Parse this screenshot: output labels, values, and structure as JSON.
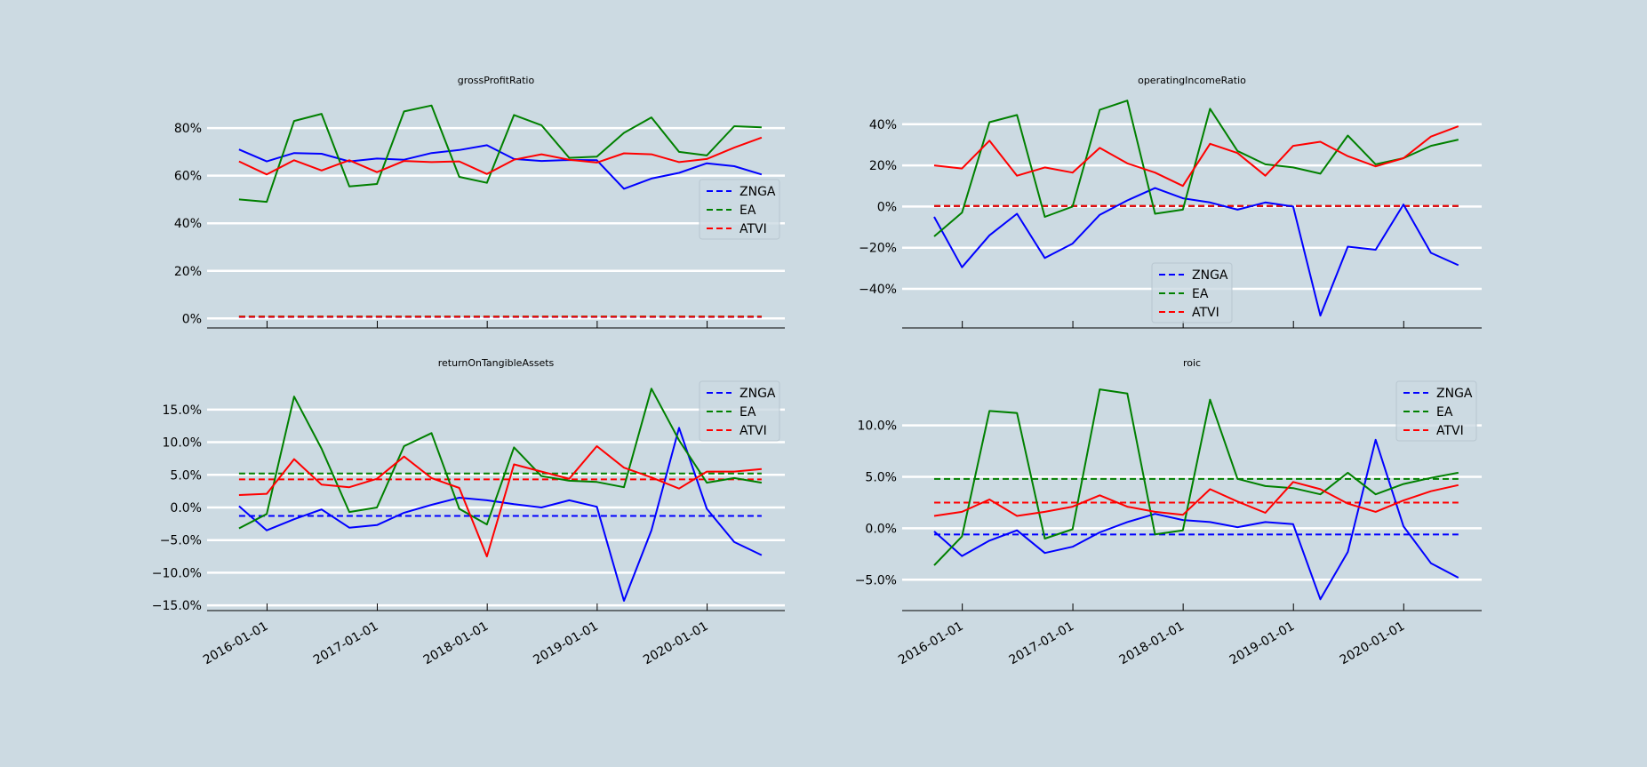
{
  "chart_data": [
    {
      "type": "line",
      "title": "grossProfitRatio",
      "y_format": "pct0",
      "ylim": [
        -0.04,
        0.92
      ],
      "yticks": [
        0,
        0.2,
        0.4,
        0.6,
        0.8
      ],
      "ytick_labels": [
        "0%",
        "20%",
        "40%",
        "60%",
        "80%"
      ],
      "xticks": [
        "2016-01-01",
        "2017-01-01",
        "2018-01-01",
        "2019-01-01",
        "2020-01-01"
      ],
      "xtick_labels_shown": false,
      "grid": "horizontal",
      "legend_position": "center-right",
      "x": [
        "2015-09-30",
        "2015-12-31",
        "2016-03-31",
        "2016-06-30",
        "2016-09-30",
        "2016-12-31",
        "2017-03-31",
        "2017-06-30",
        "2017-09-30",
        "2017-12-31",
        "2018-03-31",
        "2018-06-30",
        "2018-09-30",
        "2018-12-31",
        "2019-03-31",
        "2019-06-30",
        "2019-09-30",
        "2019-12-31",
        "2020-03-31",
        "2020-06-30"
      ],
      "series": [
        {
          "name": "ZNGA",
          "color": "#0000ff",
          "values": [
            0.71,
            0.66,
            0.695,
            0.692,
            0.66,
            0.672,
            0.667,
            0.695,
            0.708,
            0.728,
            0.67,
            0.662,
            0.666,
            0.665,
            0.545,
            0.588,
            0.612,
            0.652,
            0.64,
            0.605
          ],
          "mean": 0.006
        },
        {
          "name": "EA",
          "color": "#008000",
          "values": [
            0.5,
            0.49,
            0.83,
            0.86,
            0.555,
            0.565,
            0.87,
            0.895,
            0.595,
            0.57,
            0.855,
            0.812,
            0.675,
            0.68,
            0.78,
            0.845,
            0.7,
            0.685,
            0.808,
            0.803
          ],
          "mean": 0.008
        },
        {
          "name": "ATVI",
          "color": "#ff0000",
          "values": [
            0.66,
            0.605,
            0.665,
            0.622,
            0.665,
            0.615,
            0.662,
            0.657,
            0.66,
            0.607,
            0.667,
            0.69,
            0.667,
            0.655,
            0.694,
            0.69,
            0.657,
            0.67,
            0.718,
            0.76
          ],
          "mean": 0.007
        }
      ]
    },
    {
      "type": "line",
      "title": "operatingIncomeRatio",
      "y_format": "pct0",
      "ylim": [
        -0.59,
        0.52
      ],
      "yticks": [
        -0.4,
        -0.2,
        0,
        0.2,
        0.4
      ],
      "ytick_labels": [
        "−40%",
        "−20%",
        "0%",
        "20%",
        "40%"
      ],
      "xticks": [
        "2016-01-01",
        "2017-01-01",
        "2018-01-01",
        "2019-01-01",
        "2020-01-01"
      ],
      "xtick_labels_shown": false,
      "grid": "horizontal",
      "legend_position": "lower-center",
      "x": [
        "2015-09-30",
        "2015-12-31",
        "2016-03-31",
        "2016-06-30",
        "2016-09-30",
        "2016-12-31",
        "2017-03-31",
        "2017-06-30",
        "2017-09-30",
        "2017-12-31",
        "2018-03-31",
        "2018-06-30",
        "2018-09-30",
        "2018-12-31",
        "2019-03-31",
        "2019-06-30",
        "2019-09-30",
        "2019-12-31",
        "2020-03-31",
        "2020-06-30"
      ],
      "series": [
        {
          "name": "ZNGA",
          "color": "#0000ff",
          "values": [
            -0.05,
            -0.295,
            -0.14,
            -0.035,
            -0.25,
            -0.18,
            -0.04,
            0.03,
            0.09,
            0.04,
            0.02,
            -0.015,
            0.02,
            0.0,
            -0.53,
            -0.195,
            -0.21,
            0.01,
            -0.225,
            -0.285
          ],
          "mean": 0.002
        },
        {
          "name": "EA",
          "color": "#008000",
          "values": [
            -0.145,
            -0.03,
            0.41,
            0.445,
            -0.05,
            0.0,
            0.47,
            0.515,
            -0.035,
            -0.015,
            0.475,
            0.27,
            0.205,
            0.19,
            0.16,
            0.345,
            0.205,
            0.235,
            0.295,
            0.325
          ],
          "mean": 0.003
        },
        {
          "name": "ATVI",
          "color": "#ff0000",
          "values": [
            0.2,
            0.185,
            0.32,
            0.15,
            0.19,
            0.165,
            0.285,
            0.21,
            0.165,
            0.1,
            0.305,
            0.26,
            0.15,
            0.295,
            0.315,
            0.245,
            0.195,
            0.235,
            0.34,
            0.39
          ],
          "mean": 0.003
        }
      ]
    },
    {
      "type": "line",
      "title": "returnOnTangibleAssets",
      "y_format": "pct1",
      "ylim": [
        -0.158,
        0.192
      ],
      "yticks": [
        -0.15,
        -0.1,
        -0.05,
        0,
        0.05,
        0.1,
        0.15
      ],
      "ytick_labels": [
        "−15.0%",
        "−10.0%",
        "−5.0%",
        "0.0%",
        "5.0%",
        "10.0%",
        "15.0%"
      ],
      "xticks": [
        "2016-01-01",
        "2017-01-01",
        "2018-01-01",
        "2019-01-01",
        "2020-01-01"
      ],
      "xtick_labels": [
        "2016-01-01",
        "2017-01-01",
        "2018-01-01",
        "2019-01-01",
        "2020-01-01"
      ],
      "xtick_labels_shown": true,
      "grid": "horizontal",
      "legend_position": "upper-right",
      "x": [
        "2015-09-30",
        "2015-12-31",
        "2016-03-31",
        "2016-06-30",
        "2016-09-30",
        "2016-12-31",
        "2017-03-31",
        "2017-06-30",
        "2017-09-30",
        "2017-12-31",
        "2018-03-31",
        "2018-06-30",
        "2018-09-30",
        "2018-12-31",
        "2019-03-31",
        "2019-06-30",
        "2019-09-30",
        "2019-12-31",
        "2020-03-31",
        "2020-06-30"
      ],
      "series": [
        {
          "name": "ZNGA",
          "color": "#0000ff",
          "values": [
            0.002,
            -0.035,
            -0.018,
            -0.003,
            -0.031,
            -0.027,
            -0.008,
            0.004,
            0.015,
            0.011,
            0.005,
            0.0,
            0.011,
            0.001,
            -0.143,
            -0.035,
            0.122,
            -0.002,
            -0.053,
            -0.073
          ],
          "mean": -0.013
        },
        {
          "name": "EA",
          "color": "#008000",
          "values": [
            -0.032,
            -0.01,
            0.17,
            0.09,
            -0.007,
            0.0,
            0.094,
            0.114,
            -0.002,
            -0.026,
            0.092,
            0.048,
            0.041,
            0.039,
            0.031,
            0.182,
            0.103,
            0.038,
            0.045,
            0.038
          ],
          "mean": 0.052
        },
        {
          "name": "ATVI",
          "color": "#ff0000",
          "values": [
            0.019,
            0.021,
            0.074,
            0.035,
            0.031,
            0.044,
            0.078,
            0.045,
            0.03,
            -0.075,
            0.066,
            0.055,
            0.044,
            0.094,
            0.061,
            0.046,
            0.029,
            0.055,
            0.055,
            0.059
          ],
          "mean": 0.043
        }
      ]
    },
    {
      "type": "line",
      "title": "roic",
      "y_format": "pct1",
      "ylim": [
        -0.08,
        0.142
      ],
      "yticks": [
        -0.05,
        0,
        0.05,
        0.1
      ],
      "ytick_labels": [
        "−5.0%",
        "0.0%",
        "5.0%",
        "10.0%"
      ],
      "xticks": [
        "2016-01-01",
        "2017-01-01",
        "2018-01-01",
        "2019-01-01",
        "2020-01-01"
      ],
      "xtick_labels": [
        "2016-01-01",
        "2017-01-01",
        "2018-01-01",
        "2019-01-01",
        "2020-01-01"
      ],
      "xtick_labels_shown": true,
      "grid": "horizontal",
      "legend_position": "upper-right",
      "x": [
        "2015-09-30",
        "2015-12-31",
        "2016-03-31",
        "2016-06-30",
        "2016-09-30",
        "2016-12-31",
        "2017-03-31",
        "2017-06-30",
        "2017-09-30",
        "2017-12-31",
        "2018-03-31",
        "2018-06-30",
        "2018-09-30",
        "2018-12-31",
        "2019-03-31",
        "2019-06-30",
        "2019-09-30",
        "2019-12-31",
        "2020-03-31",
        "2020-06-30"
      ],
      "series": [
        {
          "name": "ZNGA",
          "color": "#0000ff",
          "values": [
            -0.003,
            -0.027,
            -0.012,
            -0.002,
            -0.024,
            -0.018,
            -0.004,
            0.006,
            0.014,
            0.008,
            0.006,
            0.001,
            0.006,
            0.004,
            -0.069,
            -0.023,
            0.086,
            0.002,
            -0.034,
            -0.048
          ],
          "mean": -0.006
        },
        {
          "name": "EA",
          "color": "#008000",
          "values": [
            -0.036,
            -0.008,
            0.114,
            0.112,
            -0.01,
            -0.001,
            0.135,
            0.131,
            -0.006,
            -0.002,
            0.125,
            0.048,
            0.041,
            0.039,
            0.033,
            0.054,
            0.033,
            0.043,
            0.049,
            0.054
          ],
          "mean": 0.048
        },
        {
          "name": "ATVI",
          "color": "#ff0000",
          "values": [
            0.012,
            0.016,
            0.028,
            0.012,
            0.016,
            0.021,
            0.032,
            0.021,
            0.016,
            0.013,
            0.038,
            0.026,
            0.015,
            0.045,
            0.038,
            0.024,
            0.016,
            0.027,
            0.036,
            0.042
          ],
          "mean": 0.025
        }
      ]
    }
  ]
}
